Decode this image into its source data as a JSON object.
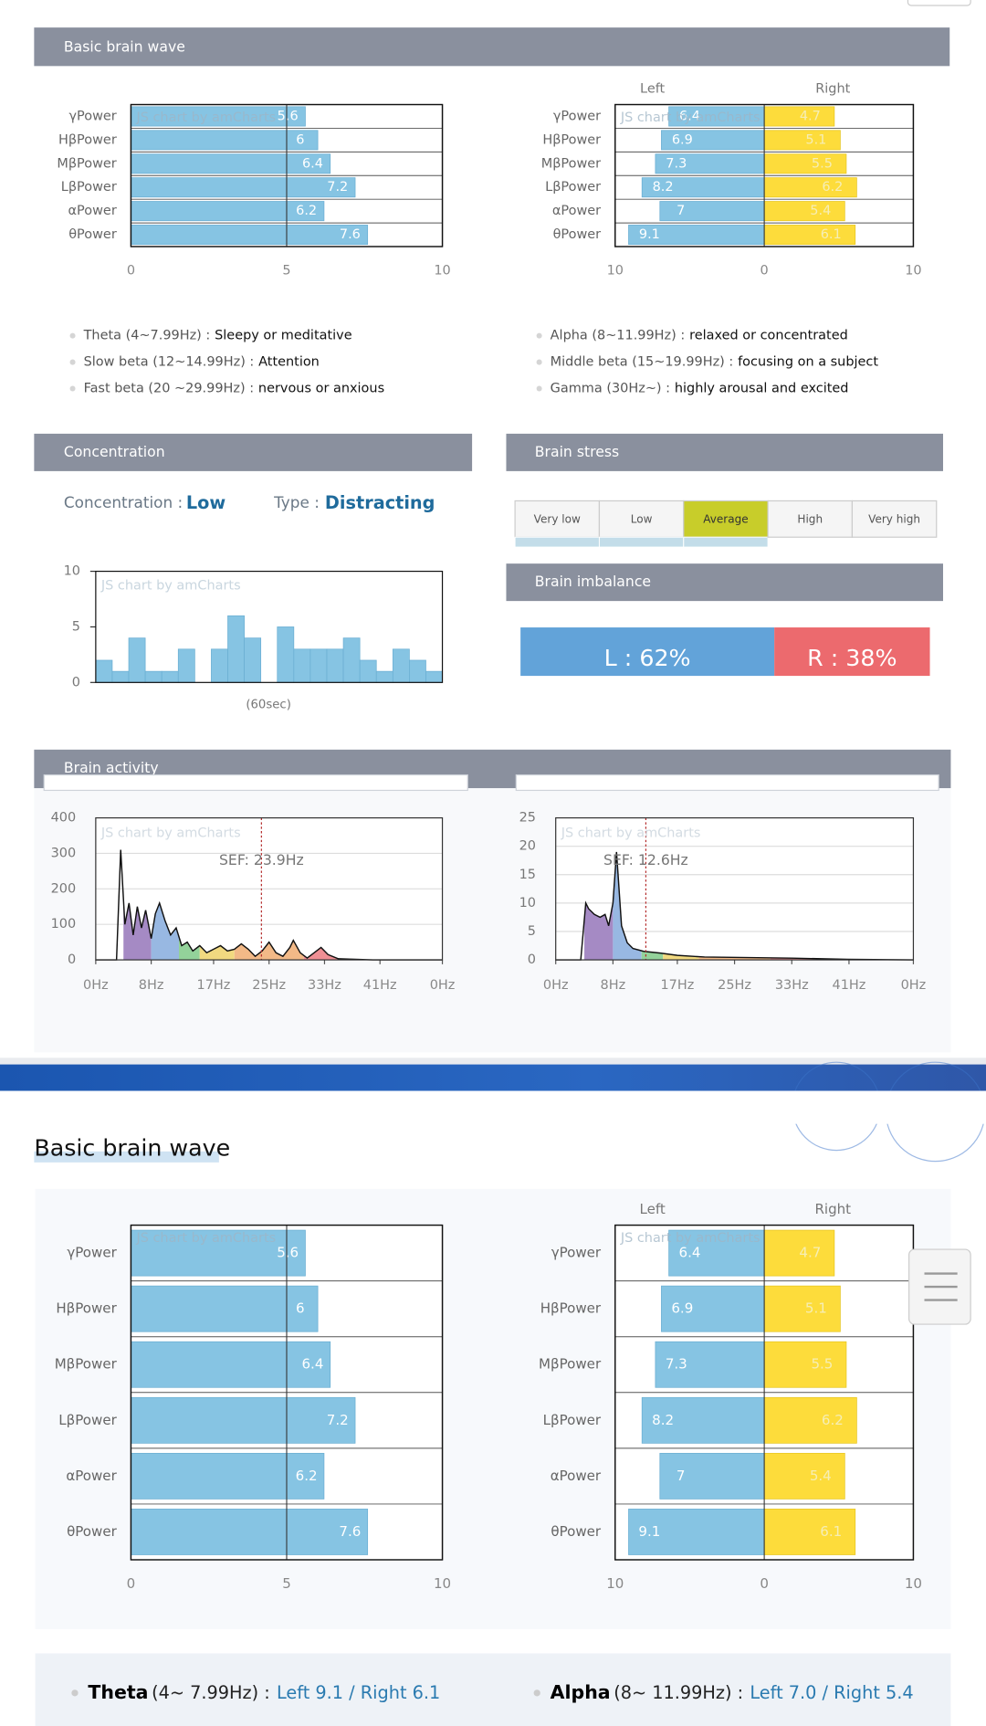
{
  "header": {
    "title": "Basic brain wave"
  },
  "watermark": "JS chart by amCharts",
  "power_chart": {
    "type": "bar",
    "categories": [
      "γPower",
      "HβPower",
      "MβPower",
      "LβPower",
      "αPower",
      "θPower"
    ],
    "values": [
      5.6,
      6,
      6.4,
      7.2,
      6.2,
      7.6
    ],
    "color": "#86c4e3",
    "xlim": [
      0,
      10
    ],
    "xticks": [
      0,
      5,
      10
    ]
  },
  "lr_chart": {
    "type": "bar",
    "categories": [
      "γPower",
      "HβPower",
      "MβPower",
      "LβPower",
      "αPower",
      "θPower"
    ],
    "series": [
      {
        "name": "Left",
        "color": "#86c4e3",
        "values": [
          6.4,
          6.9,
          7.3,
          8.2,
          7,
          9.1
        ]
      },
      {
        "name": "Right",
        "color": "#fddc3b",
        "values": [
          4.7,
          5.1,
          5.5,
          6.2,
          5.4,
          6.1
        ]
      }
    ],
    "xlim": [
      -10,
      10
    ],
    "xticks": [
      {
        "value": -10,
        "label": "10"
      },
      0,
      10
    ]
  },
  "legend": {
    "left": [
      {
        "range": "Theta (4~7.99Hz) :",
        "desc": "Sleepy or meditative"
      },
      {
        "range": "Slow beta (12~14.99Hz) :",
        "desc": "Attention"
      },
      {
        "range": "Fast beta (20 ~29.99Hz) :",
        "desc": "nervous or anxious"
      }
    ],
    "right": [
      {
        "range": "Alpha (8~11.99Hz) :",
        "desc": "relaxed or concentrated"
      },
      {
        "range": "Middle beta (15~19.99Hz) :",
        "desc": "focusing on a subject"
      },
      {
        "range": "Gamma (30Hz~) :",
        "desc": "highly arousal and excited"
      }
    ]
  },
  "concentration": {
    "title": "Concentration",
    "label": "Concentration :",
    "level": "Low",
    "type_label": "Type :",
    "type": "Distracting",
    "chart": {
      "type": "bar",
      "values": [
        2,
        1,
        4,
        1,
        1,
        3,
        0,
        3,
        6,
        4,
        0,
        5,
        3,
        3,
        3,
        4,
        2,
        1,
        3,
        2,
        1
      ],
      "color": "#86c4e3",
      "ylim": [
        0,
        10
      ],
      "yticks": [
        0,
        5,
        10
      ],
      "xlabel": "(60sec)"
    }
  },
  "stress": {
    "title": "Brain stress",
    "levels": [
      "Very low",
      "Low",
      "Average",
      "High",
      "Very high"
    ],
    "selected": "Average",
    "color": "#c8cd2a"
  },
  "imbalance": {
    "title": "Brain imbalance",
    "left": {
      "value": 62,
      "label": "L : 62%",
      "color": "#62a3d9"
    },
    "right": {
      "value": 38,
      "label": "R : 38%",
      "color": "#ec6a6e"
    }
  },
  "activity": {
    "title": "Brain activity",
    "bands": [
      {
        "from": 4,
        "to": 8,
        "color": "#a58ac4"
      },
      {
        "from": 8,
        "to": 12,
        "color": "#98b8e2"
      },
      {
        "from": 12,
        "to": 15,
        "color": "#93d29a"
      },
      {
        "from": 15,
        "to": 20,
        "color": "#f1d980"
      },
      {
        "from": 20,
        "to": 30,
        "color": "#f2b987"
      },
      {
        "from": 30,
        "to": 50,
        "color": "#ef8f94"
      }
    ],
    "charts": [
      {
        "type": "area",
        "x": [
          0,
          3,
          3.6,
          4.2,
          4.8,
          5.4,
          6,
          6.6,
          7.2,
          8,
          8.6,
          9.2,
          10,
          10.8,
          11.6,
          12.4,
          13.2,
          14,
          15,
          16,
          17,
          18,
          19,
          20,
          21,
          22,
          23,
          24,
          25,
          26,
          27,
          28,
          28.5,
          29.5,
          30.5,
          31.5,
          32.5,
          33.5,
          35,
          37,
          40,
          50
        ],
        "values": [
          0,
          0,
          310,
          100,
          160,
          70,
          150,
          90,
          140,
          60,
          130,
          160,
          110,
          70,
          90,
          40,
          50,
          25,
          40,
          20,
          30,
          40,
          25,
          30,
          45,
          30,
          10,
          25,
          50,
          20,
          10,
          35,
          55,
          20,
          5,
          20,
          35,
          15,
          3,
          2,
          0,
          0
        ],
        "ylim": [
          0,
          400
        ],
        "yticks": [
          0,
          100,
          200,
          300,
          400
        ],
        "xlim": [
          0,
          50
        ],
        "xticks": [
          {
            "value": 0,
            "label": "0Hz"
          },
          {
            "value": 8,
            "label": "8Hz"
          },
          {
            "value": 17,
            "label": "17Hz"
          },
          {
            "value": 25,
            "label": "25Hz"
          },
          {
            "value": 33,
            "label": "33Hz"
          },
          {
            "value": 41,
            "label": "41Hz"
          },
          {
            "value": 50,
            "label": "0Hz"
          }
        ],
        "sef": 23.9,
        "sef_label": "SEF: 23.9Hz"
      },
      {
        "type": "area",
        "x": [
          0,
          3.5,
          4.2,
          4.6,
          5.4,
          6.2,
          6.9,
          7.4,
          8,
          8.5,
          9.2,
          10,
          10.8,
          12.3,
          14.6,
          17,
          20.8,
          27,
          33,
          40.8,
          50
        ],
        "values": [
          0,
          0,
          10,
          9,
          8,
          7.5,
          8,
          6,
          10,
          19,
          6,
          3,
          2,
          1.5,
          1.2,
          0.8,
          0.5,
          0.4,
          0.3,
          0.1,
          0
        ],
        "ylim": [
          0,
          25
        ],
        "yticks": [
          0,
          5,
          10,
          15,
          20,
          25
        ],
        "xlim": [
          0,
          50
        ],
        "xticks": [
          {
            "value": 0,
            "label": "0Hz"
          },
          {
            "value": 8,
            "label": "8Hz"
          },
          {
            "value": 17,
            "label": "17Hz"
          },
          {
            "value": 25,
            "label": "25Hz"
          },
          {
            "value": 33,
            "label": "33Hz"
          },
          {
            "value": 41,
            "label": "41Hz"
          },
          {
            "value": 50,
            "label": "0Hz"
          }
        ],
        "sef": 12.6,
        "sef_label": "SEF: 12.6Hz"
      }
    ]
  },
  "report": {
    "title": "Basic brain wave",
    "items": [
      {
        "name": "Theta",
        "range": "(4~ 7.99Hz) :",
        "detail": "Left 9.1 / Right 6.1"
      },
      {
        "name": "Alpha",
        "range": "(8~ 11.99Hz) :",
        "detail": "Left 7.0 / Right 5.4"
      }
    ]
  }
}
